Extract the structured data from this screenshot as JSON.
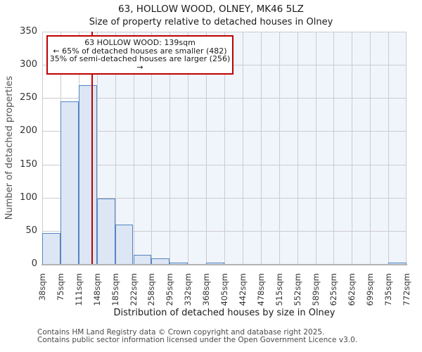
{
  "header": {
    "title": "63, HOLLOW WOOD, OLNEY, MK46 5LZ",
    "subtitle": "Size of property relative to detached houses in Olney"
  },
  "annotation": {
    "line1": "63 HOLLOW WOOD: 139sqm",
    "line2": "← 65% of detached houses are smaller (482)",
    "line3": "35% of semi-detached houses are larger (256) →"
  },
  "chart_data": {
    "type": "bar",
    "title": "63, HOLLOW WOOD, OLNEY, MK46 5LZ",
    "subtitle": "Size of property relative to detached houses in Olney",
    "xlabel": "Distribution of detached houses by size in Olney",
    "ylabel": "Number of detached properties",
    "bin_edges_sqm": [
      38,
      75,
      111,
      148,
      185,
      222,
      258,
      295,
      332,
      368,
      405,
      442,
      478,
      515,
      552,
      589,
      625,
      662,
      699,
      735,
      772
    ],
    "bin_labels": [
      "38sqm",
      "75sqm",
      "111sqm",
      "148sqm",
      "185sqm",
      "222sqm",
      "258sqm",
      "295sqm",
      "332sqm",
      "368sqm",
      "405sqm",
      "442sqm",
      "478sqm",
      "515sqm",
      "552sqm",
      "589sqm",
      "625sqm",
      "662sqm",
      "699sqm",
      "735sqm",
      "772sqm"
    ],
    "values": [
      47,
      245,
      269,
      99,
      59,
      14,
      8,
      2,
      0,
      2,
      0,
      0,
      0,
      0,
      0,
      0,
      0,
      0,
      0,
      2
    ],
    "yticks": [
      0,
      50,
      100,
      150,
      200,
      250,
      300,
      350
    ],
    "ylim": [
      0,
      350
    ],
    "xlim_sqm": [
      38,
      772
    ],
    "grid": true,
    "legend": "none",
    "marker_value_sqm": 139,
    "colors": {
      "bar_fill": "#dce6f4",
      "bar_edge": "#5585c2",
      "marker_line": "#c00000",
      "shade_right_of_marker": "#f0f4fb",
      "gridline": "#cccccc",
      "axis_line": "#b3b3b3"
    }
  },
  "footer": {
    "line1": "Contains HM Land Registry data © Crown copyright and database right 2025.",
    "line2": "Contains public sector information licensed under the Open Government Licence v3.0."
  }
}
